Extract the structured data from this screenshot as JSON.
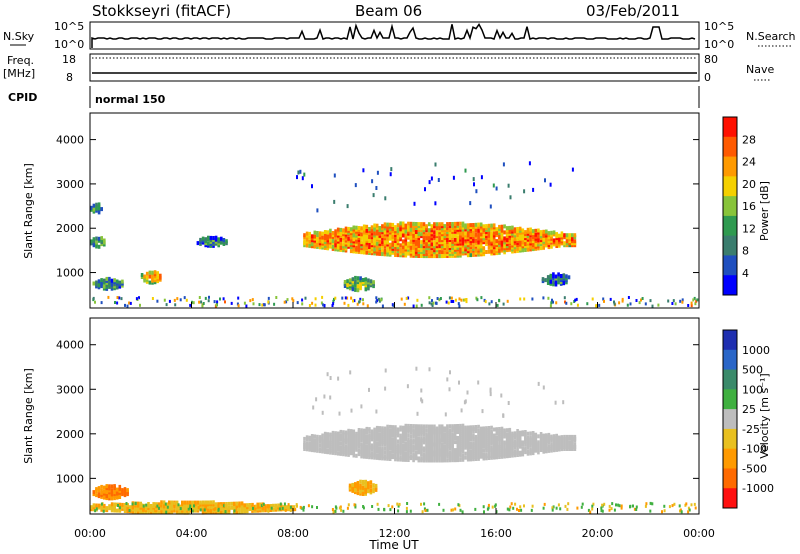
{
  "header": {
    "station": "Stokkseyri (fitACF)",
    "beam": "Beam 06",
    "date": "03/Feb/2011"
  },
  "status_panels": {
    "nsky_label": "N.Sky",
    "nsky_ticks": [
      "10^5",
      "10^0"
    ],
    "nsearch_label": "N.Search",
    "nsearch_ticks": [
      "10^5",
      "10^0"
    ],
    "freq_label_line1": "Freq.",
    "freq_label_line2": "[MHz]",
    "freq_ticks": [
      "18",
      "8"
    ],
    "nave_label": "Nave",
    "nave_ticks": [
      "80",
      "0"
    ],
    "cpid_label": "CPID",
    "cpid_text": "normal 150"
  },
  "colors": {
    "power": [
      "#0000ff",
      "#1f4fbf",
      "#3a7d6e",
      "#2f9a50",
      "#88c43a",
      "#f5d000",
      "#ff9a00",
      "#ff5a00",
      "#ff1000"
    ],
    "velocity_pos": [
      "#1f2fb0",
      "#2a66c8",
      "#3a8a6a",
      "#40b040"
    ],
    "velocity_grey": "#bdbdbd",
    "velocity_neg": [
      "#e8c020",
      "#ff9a00",
      "#ff6a00",
      "#ff1010"
    ]
  },
  "chart_data": [
    {
      "type": "heatmap",
      "panel": "power",
      "ylabel": "Slant Range [km]",
      "yticks": [
        "1000",
        "2000",
        "3000",
        "4000"
      ],
      "ylim": [
        200,
        4600
      ],
      "xlim": [
        0,
        24
      ],
      "colorbar_label": "Power [dB]",
      "colorbar_ticks": [
        "4",
        "8",
        "12",
        "16",
        "20",
        "24",
        "28"
      ],
      "colorbar_range": [
        0,
        32
      ],
      "regions": [
        {
          "t0": 8.4,
          "t1": 19.1,
          "r_mid": 1750,
          "half_width": 380,
          "level": 21
        },
        {
          "t0": 0.0,
          "t1": 0.6,
          "r_mid": 1700,
          "half_width": 120,
          "level": 9
        },
        {
          "t0": 0.0,
          "t1": 0.5,
          "r_mid": 2450,
          "half_width": 100,
          "level": 6
        },
        {
          "t0": 2.0,
          "t1": 2.8,
          "r_mid": 900,
          "half_width": 130,
          "level": 18
        },
        {
          "t0": 0.1,
          "t1": 1.3,
          "r_mid": 750,
          "half_width": 120,
          "level": 8
        },
        {
          "t0": 4.2,
          "t1": 5.4,
          "r_mid": 1700,
          "half_width": 100,
          "level": 6
        },
        {
          "t0": 10.0,
          "t1": 11.2,
          "r_mid": 750,
          "half_width": 150,
          "level": 10
        },
        {
          "t0": 17.8,
          "t1": 18.9,
          "r_mid": 850,
          "half_width": 120,
          "level": 6
        }
      ]
    },
    {
      "type": "heatmap",
      "panel": "velocity",
      "ylabel": "Slant Range [km]",
      "yticks": [
        "1000",
        "2000",
        "3000",
        "4000"
      ],
      "ylim": [
        200,
        4600
      ],
      "xlim": [
        0,
        24
      ],
      "xlabel": "Time UT",
      "xticks": [
        "00:00",
        "04:00",
        "08:00",
        "12:00",
        "16:00",
        "20:00",
        "00:00"
      ],
      "colorbar_label": "Velocity [m s⁻¹]",
      "colorbar_ticks": [
        "1000",
        "500",
        "100",
        "25",
        "-25",
        "-100",
        "-500",
        "-1000"
      ],
      "regions": [
        {
          "t0": 8.4,
          "t1": 19.1,
          "r_mid": 1800,
          "half_width": 400,
          "class": "grey"
        },
        {
          "t0": 0.1,
          "t1": 1.5,
          "r_mid": 700,
          "half_width": 150,
          "class": "neg2"
        },
        {
          "t0": 0.0,
          "t1": 8.0,
          "r_mid": 350,
          "half_width": 120,
          "class": "neg1"
        },
        {
          "t0": 10.2,
          "t1": 11.3,
          "r_mid": 800,
          "half_width": 150,
          "class": "neg1"
        }
      ]
    }
  ]
}
